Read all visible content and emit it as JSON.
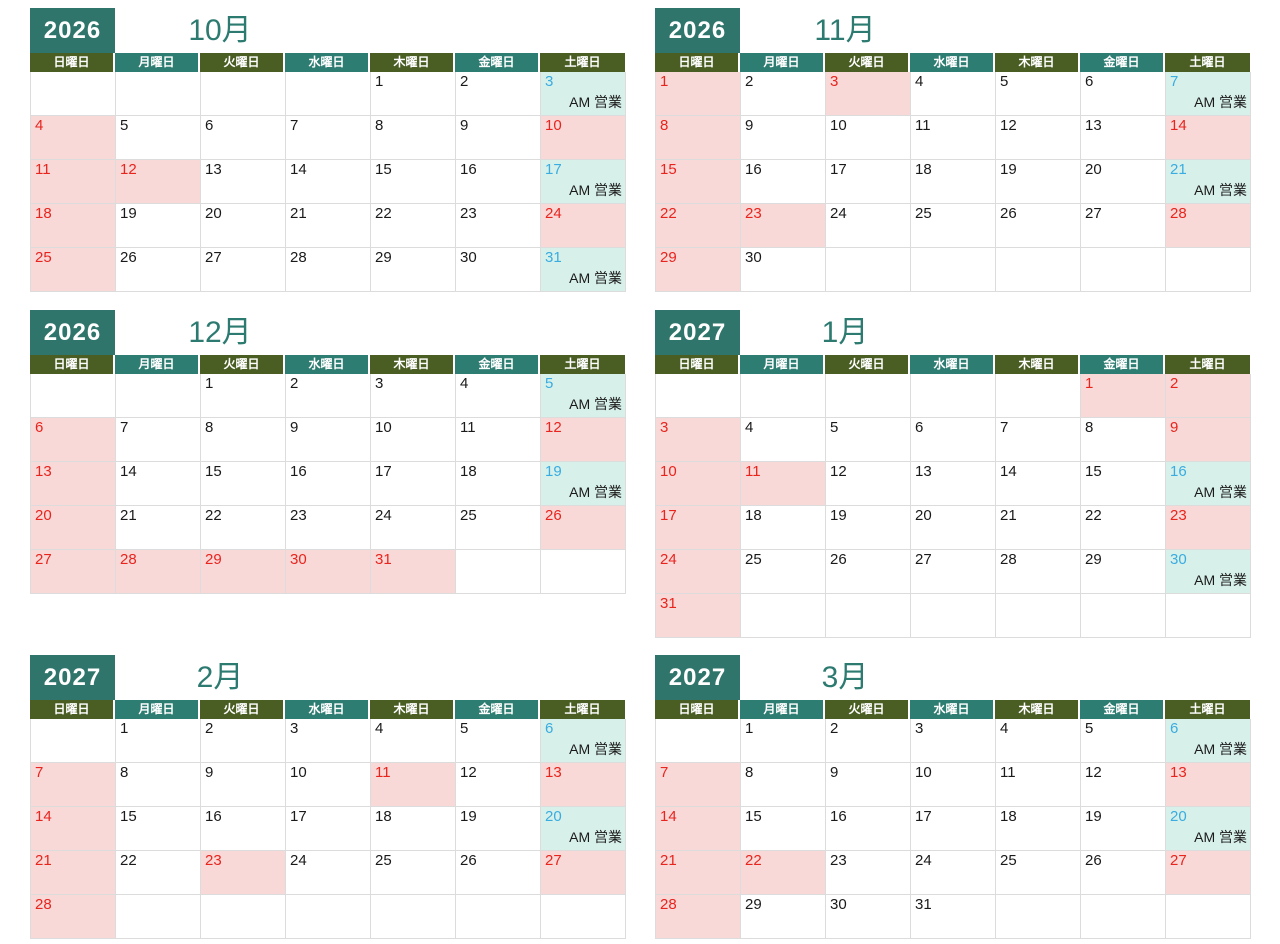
{
  "weekday_headers": [
    "日曜日",
    "月曜日",
    "火曜日",
    "水曜日",
    "木曜日",
    "金曜日",
    "土曜日"
  ],
  "am_open_label": "AM 営業",
  "colors": {
    "header_olive": "#4a5e23",
    "header_teal": "#2e7d72",
    "year_box": "#2f756b",
    "title_text": "#2c7a70",
    "holiday_bg": "#f8d9d8",
    "holiday_number": "#e8241d",
    "am_bg": "#d8f0ea",
    "am_number": "#39ace0",
    "grid_line": "#dcdcdc",
    "day_number": "#1a1a1a"
  },
  "months": [
    {
      "year": "2026",
      "title": "10月",
      "weeks": [
        [
          {
            "d": "",
            "t": "blank"
          },
          {
            "d": "",
            "t": "blank"
          },
          {
            "d": "",
            "t": "blank"
          },
          {
            "d": "",
            "t": "blank"
          },
          {
            "d": "1",
            "t": "normal"
          },
          {
            "d": "2",
            "t": "normal"
          },
          {
            "d": "3",
            "t": "am"
          }
        ],
        [
          {
            "d": "4",
            "t": "holiday"
          },
          {
            "d": "5",
            "t": "normal"
          },
          {
            "d": "6",
            "t": "normal"
          },
          {
            "d": "7",
            "t": "normal"
          },
          {
            "d": "8",
            "t": "normal"
          },
          {
            "d": "9",
            "t": "normal"
          },
          {
            "d": "10",
            "t": "holiday"
          }
        ],
        [
          {
            "d": "11",
            "t": "holiday"
          },
          {
            "d": "12",
            "t": "holiday"
          },
          {
            "d": "13",
            "t": "normal"
          },
          {
            "d": "14",
            "t": "normal"
          },
          {
            "d": "15",
            "t": "normal"
          },
          {
            "d": "16",
            "t": "normal"
          },
          {
            "d": "17",
            "t": "am"
          }
        ],
        [
          {
            "d": "18",
            "t": "holiday"
          },
          {
            "d": "19",
            "t": "normal"
          },
          {
            "d": "20",
            "t": "normal"
          },
          {
            "d": "21",
            "t": "normal"
          },
          {
            "d": "22",
            "t": "normal"
          },
          {
            "d": "23",
            "t": "normal"
          },
          {
            "d": "24",
            "t": "holiday"
          }
        ],
        [
          {
            "d": "25",
            "t": "holiday"
          },
          {
            "d": "26",
            "t": "normal"
          },
          {
            "d": "27",
            "t": "normal"
          },
          {
            "d": "28",
            "t": "normal"
          },
          {
            "d": "29",
            "t": "normal"
          },
          {
            "d": "30",
            "t": "normal"
          },
          {
            "d": "31",
            "t": "am"
          }
        ]
      ]
    },
    {
      "year": "2026",
      "title": "11月",
      "weeks": [
        [
          {
            "d": "1",
            "t": "holiday"
          },
          {
            "d": "2",
            "t": "normal"
          },
          {
            "d": "3",
            "t": "holiday"
          },
          {
            "d": "4",
            "t": "normal"
          },
          {
            "d": "5",
            "t": "normal"
          },
          {
            "d": "6",
            "t": "normal"
          },
          {
            "d": "7",
            "t": "am"
          }
        ],
        [
          {
            "d": "8",
            "t": "holiday"
          },
          {
            "d": "9",
            "t": "normal"
          },
          {
            "d": "10",
            "t": "normal"
          },
          {
            "d": "11",
            "t": "normal"
          },
          {
            "d": "12",
            "t": "normal"
          },
          {
            "d": "13",
            "t": "normal"
          },
          {
            "d": "14",
            "t": "holiday"
          }
        ],
        [
          {
            "d": "15",
            "t": "holiday"
          },
          {
            "d": "16",
            "t": "normal"
          },
          {
            "d": "17",
            "t": "normal"
          },
          {
            "d": "18",
            "t": "normal"
          },
          {
            "d": "19",
            "t": "normal"
          },
          {
            "d": "20",
            "t": "normal"
          },
          {
            "d": "21",
            "t": "am"
          }
        ],
        [
          {
            "d": "22",
            "t": "holiday"
          },
          {
            "d": "23",
            "t": "holiday"
          },
          {
            "d": "24",
            "t": "normal"
          },
          {
            "d": "25",
            "t": "normal"
          },
          {
            "d": "26",
            "t": "normal"
          },
          {
            "d": "27",
            "t": "normal"
          },
          {
            "d": "28",
            "t": "holiday"
          }
        ],
        [
          {
            "d": "29",
            "t": "holiday"
          },
          {
            "d": "30",
            "t": "normal"
          },
          {
            "d": "",
            "t": "blank"
          },
          {
            "d": "",
            "t": "blank"
          },
          {
            "d": "",
            "t": "blank"
          },
          {
            "d": "",
            "t": "blank"
          },
          {
            "d": "",
            "t": "blank"
          }
        ]
      ]
    },
    {
      "year": "2026",
      "title": "12月",
      "weeks": [
        [
          {
            "d": "",
            "t": "blank"
          },
          {
            "d": "",
            "t": "blank"
          },
          {
            "d": "1",
            "t": "normal"
          },
          {
            "d": "2",
            "t": "normal"
          },
          {
            "d": "3",
            "t": "normal"
          },
          {
            "d": "4",
            "t": "normal"
          },
          {
            "d": "5",
            "t": "am"
          }
        ],
        [
          {
            "d": "6",
            "t": "holiday"
          },
          {
            "d": "7",
            "t": "normal"
          },
          {
            "d": "8",
            "t": "normal"
          },
          {
            "d": "9",
            "t": "normal"
          },
          {
            "d": "10",
            "t": "normal"
          },
          {
            "d": "11",
            "t": "normal"
          },
          {
            "d": "12",
            "t": "holiday"
          }
        ],
        [
          {
            "d": "13",
            "t": "holiday"
          },
          {
            "d": "14",
            "t": "normal"
          },
          {
            "d": "15",
            "t": "normal"
          },
          {
            "d": "16",
            "t": "normal"
          },
          {
            "d": "17",
            "t": "normal"
          },
          {
            "d": "18",
            "t": "normal"
          },
          {
            "d": "19",
            "t": "am"
          }
        ],
        [
          {
            "d": "20",
            "t": "holiday"
          },
          {
            "d": "21",
            "t": "normal"
          },
          {
            "d": "22",
            "t": "normal"
          },
          {
            "d": "23",
            "t": "normal"
          },
          {
            "d": "24",
            "t": "normal"
          },
          {
            "d": "25",
            "t": "normal"
          },
          {
            "d": "26",
            "t": "holiday"
          }
        ],
        [
          {
            "d": "27",
            "t": "holiday"
          },
          {
            "d": "28",
            "t": "holiday"
          },
          {
            "d": "29",
            "t": "holiday"
          },
          {
            "d": "30",
            "t": "holiday"
          },
          {
            "d": "31",
            "t": "holiday"
          },
          {
            "d": "",
            "t": "blank"
          },
          {
            "d": "",
            "t": "blank"
          }
        ]
      ]
    },
    {
      "year": "2027",
      "title": "1月",
      "weeks": [
        [
          {
            "d": "",
            "t": "blank"
          },
          {
            "d": "",
            "t": "blank"
          },
          {
            "d": "",
            "t": "blank"
          },
          {
            "d": "",
            "t": "blank"
          },
          {
            "d": "",
            "t": "blank"
          },
          {
            "d": "1",
            "t": "holiday"
          },
          {
            "d": "2",
            "t": "holiday"
          }
        ],
        [
          {
            "d": "3",
            "t": "holiday"
          },
          {
            "d": "4",
            "t": "normal"
          },
          {
            "d": "5",
            "t": "normal"
          },
          {
            "d": "6",
            "t": "normal"
          },
          {
            "d": "7",
            "t": "normal"
          },
          {
            "d": "8",
            "t": "normal"
          },
          {
            "d": "9",
            "t": "holiday"
          }
        ],
        [
          {
            "d": "10",
            "t": "holiday"
          },
          {
            "d": "11",
            "t": "holiday"
          },
          {
            "d": "12",
            "t": "normal"
          },
          {
            "d": "13",
            "t": "normal"
          },
          {
            "d": "14",
            "t": "normal"
          },
          {
            "d": "15",
            "t": "normal"
          },
          {
            "d": "16",
            "t": "am"
          }
        ],
        [
          {
            "d": "17",
            "t": "holiday"
          },
          {
            "d": "18",
            "t": "normal"
          },
          {
            "d": "19",
            "t": "normal"
          },
          {
            "d": "20",
            "t": "normal"
          },
          {
            "d": "21",
            "t": "normal"
          },
          {
            "d": "22",
            "t": "normal"
          },
          {
            "d": "23",
            "t": "holiday"
          }
        ],
        [
          {
            "d": "24",
            "t": "holiday"
          },
          {
            "d": "25",
            "t": "normal"
          },
          {
            "d": "26",
            "t": "normal"
          },
          {
            "d": "27",
            "t": "normal"
          },
          {
            "d": "28",
            "t": "normal"
          },
          {
            "d": "29",
            "t": "normal"
          },
          {
            "d": "30",
            "t": "am"
          }
        ],
        [
          {
            "d": "31",
            "t": "holiday"
          },
          {
            "d": "",
            "t": "blank"
          },
          {
            "d": "",
            "t": "blank"
          },
          {
            "d": "",
            "t": "blank"
          },
          {
            "d": "",
            "t": "blank"
          },
          {
            "d": "",
            "t": "blank"
          },
          {
            "d": "",
            "t": "blank"
          }
        ]
      ]
    },
    {
      "year": "2027",
      "title": "2月",
      "weeks": [
        [
          {
            "d": "",
            "t": "blank"
          },
          {
            "d": "1",
            "t": "normal"
          },
          {
            "d": "2",
            "t": "normal"
          },
          {
            "d": "3",
            "t": "normal"
          },
          {
            "d": "4",
            "t": "normal"
          },
          {
            "d": "5",
            "t": "normal"
          },
          {
            "d": "6",
            "t": "am"
          }
        ],
        [
          {
            "d": "7",
            "t": "holiday"
          },
          {
            "d": "8",
            "t": "normal"
          },
          {
            "d": "9",
            "t": "normal"
          },
          {
            "d": "10",
            "t": "normal"
          },
          {
            "d": "11",
            "t": "holiday"
          },
          {
            "d": "12",
            "t": "normal"
          },
          {
            "d": "13",
            "t": "holiday"
          }
        ],
        [
          {
            "d": "14",
            "t": "holiday"
          },
          {
            "d": "15",
            "t": "normal"
          },
          {
            "d": "16",
            "t": "normal"
          },
          {
            "d": "17",
            "t": "normal"
          },
          {
            "d": "18",
            "t": "normal"
          },
          {
            "d": "19",
            "t": "normal"
          },
          {
            "d": "20",
            "t": "am"
          }
        ],
        [
          {
            "d": "21",
            "t": "holiday"
          },
          {
            "d": "22",
            "t": "normal"
          },
          {
            "d": "23",
            "t": "holiday"
          },
          {
            "d": "24",
            "t": "normal"
          },
          {
            "d": "25",
            "t": "normal"
          },
          {
            "d": "26",
            "t": "normal"
          },
          {
            "d": "27",
            "t": "holiday"
          }
        ],
        [
          {
            "d": "28",
            "t": "holiday"
          },
          {
            "d": "",
            "t": "blank"
          },
          {
            "d": "",
            "t": "blank"
          },
          {
            "d": "",
            "t": "blank"
          },
          {
            "d": "",
            "t": "blank"
          },
          {
            "d": "",
            "t": "blank"
          },
          {
            "d": "",
            "t": "blank"
          }
        ]
      ]
    },
    {
      "year": "2027",
      "title": "3月",
      "weeks": [
        [
          {
            "d": "",
            "t": "blank"
          },
          {
            "d": "1",
            "t": "normal"
          },
          {
            "d": "2",
            "t": "normal"
          },
          {
            "d": "3",
            "t": "normal"
          },
          {
            "d": "4",
            "t": "normal"
          },
          {
            "d": "5",
            "t": "normal"
          },
          {
            "d": "6",
            "t": "am"
          }
        ],
        [
          {
            "d": "7",
            "t": "holiday"
          },
          {
            "d": "8",
            "t": "normal"
          },
          {
            "d": "9",
            "t": "normal"
          },
          {
            "d": "10",
            "t": "normal"
          },
          {
            "d": "11",
            "t": "normal"
          },
          {
            "d": "12",
            "t": "normal"
          },
          {
            "d": "13",
            "t": "holiday"
          }
        ],
        [
          {
            "d": "14",
            "t": "holiday"
          },
          {
            "d": "15",
            "t": "normal"
          },
          {
            "d": "16",
            "t": "normal"
          },
          {
            "d": "17",
            "t": "normal"
          },
          {
            "d": "18",
            "t": "normal"
          },
          {
            "d": "19",
            "t": "normal"
          },
          {
            "d": "20",
            "t": "am"
          }
        ],
        [
          {
            "d": "21",
            "t": "holiday"
          },
          {
            "d": "22",
            "t": "holiday"
          },
          {
            "d": "23",
            "t": "normal"
          },
          {
            "d": "24",
            "t": "normal"
          },
          {
            "d": "25",
            "t": "normal"
          },
          {
            "d": "26",
            "t": "normal"
          },
          {
            "d": "27",
            "t": "holiday"
          }
        ],
        [
          {
            "d": "28",
            "t": "holiday"
          },
          {
            "d": "29",
            "t": "normal"
          },
          {
            "d": "30",
            "t": "normal"
          },
          {
            "d": "31",
            "t": "normal"
          },
          {
            "d": "",
            "t": "blank"
          },
          {
            "d": "",
            "t": "blank"
          },
          {
            "d": "",
            "t": "blank"
          }
        ]
      ]
    }
  ]
}
